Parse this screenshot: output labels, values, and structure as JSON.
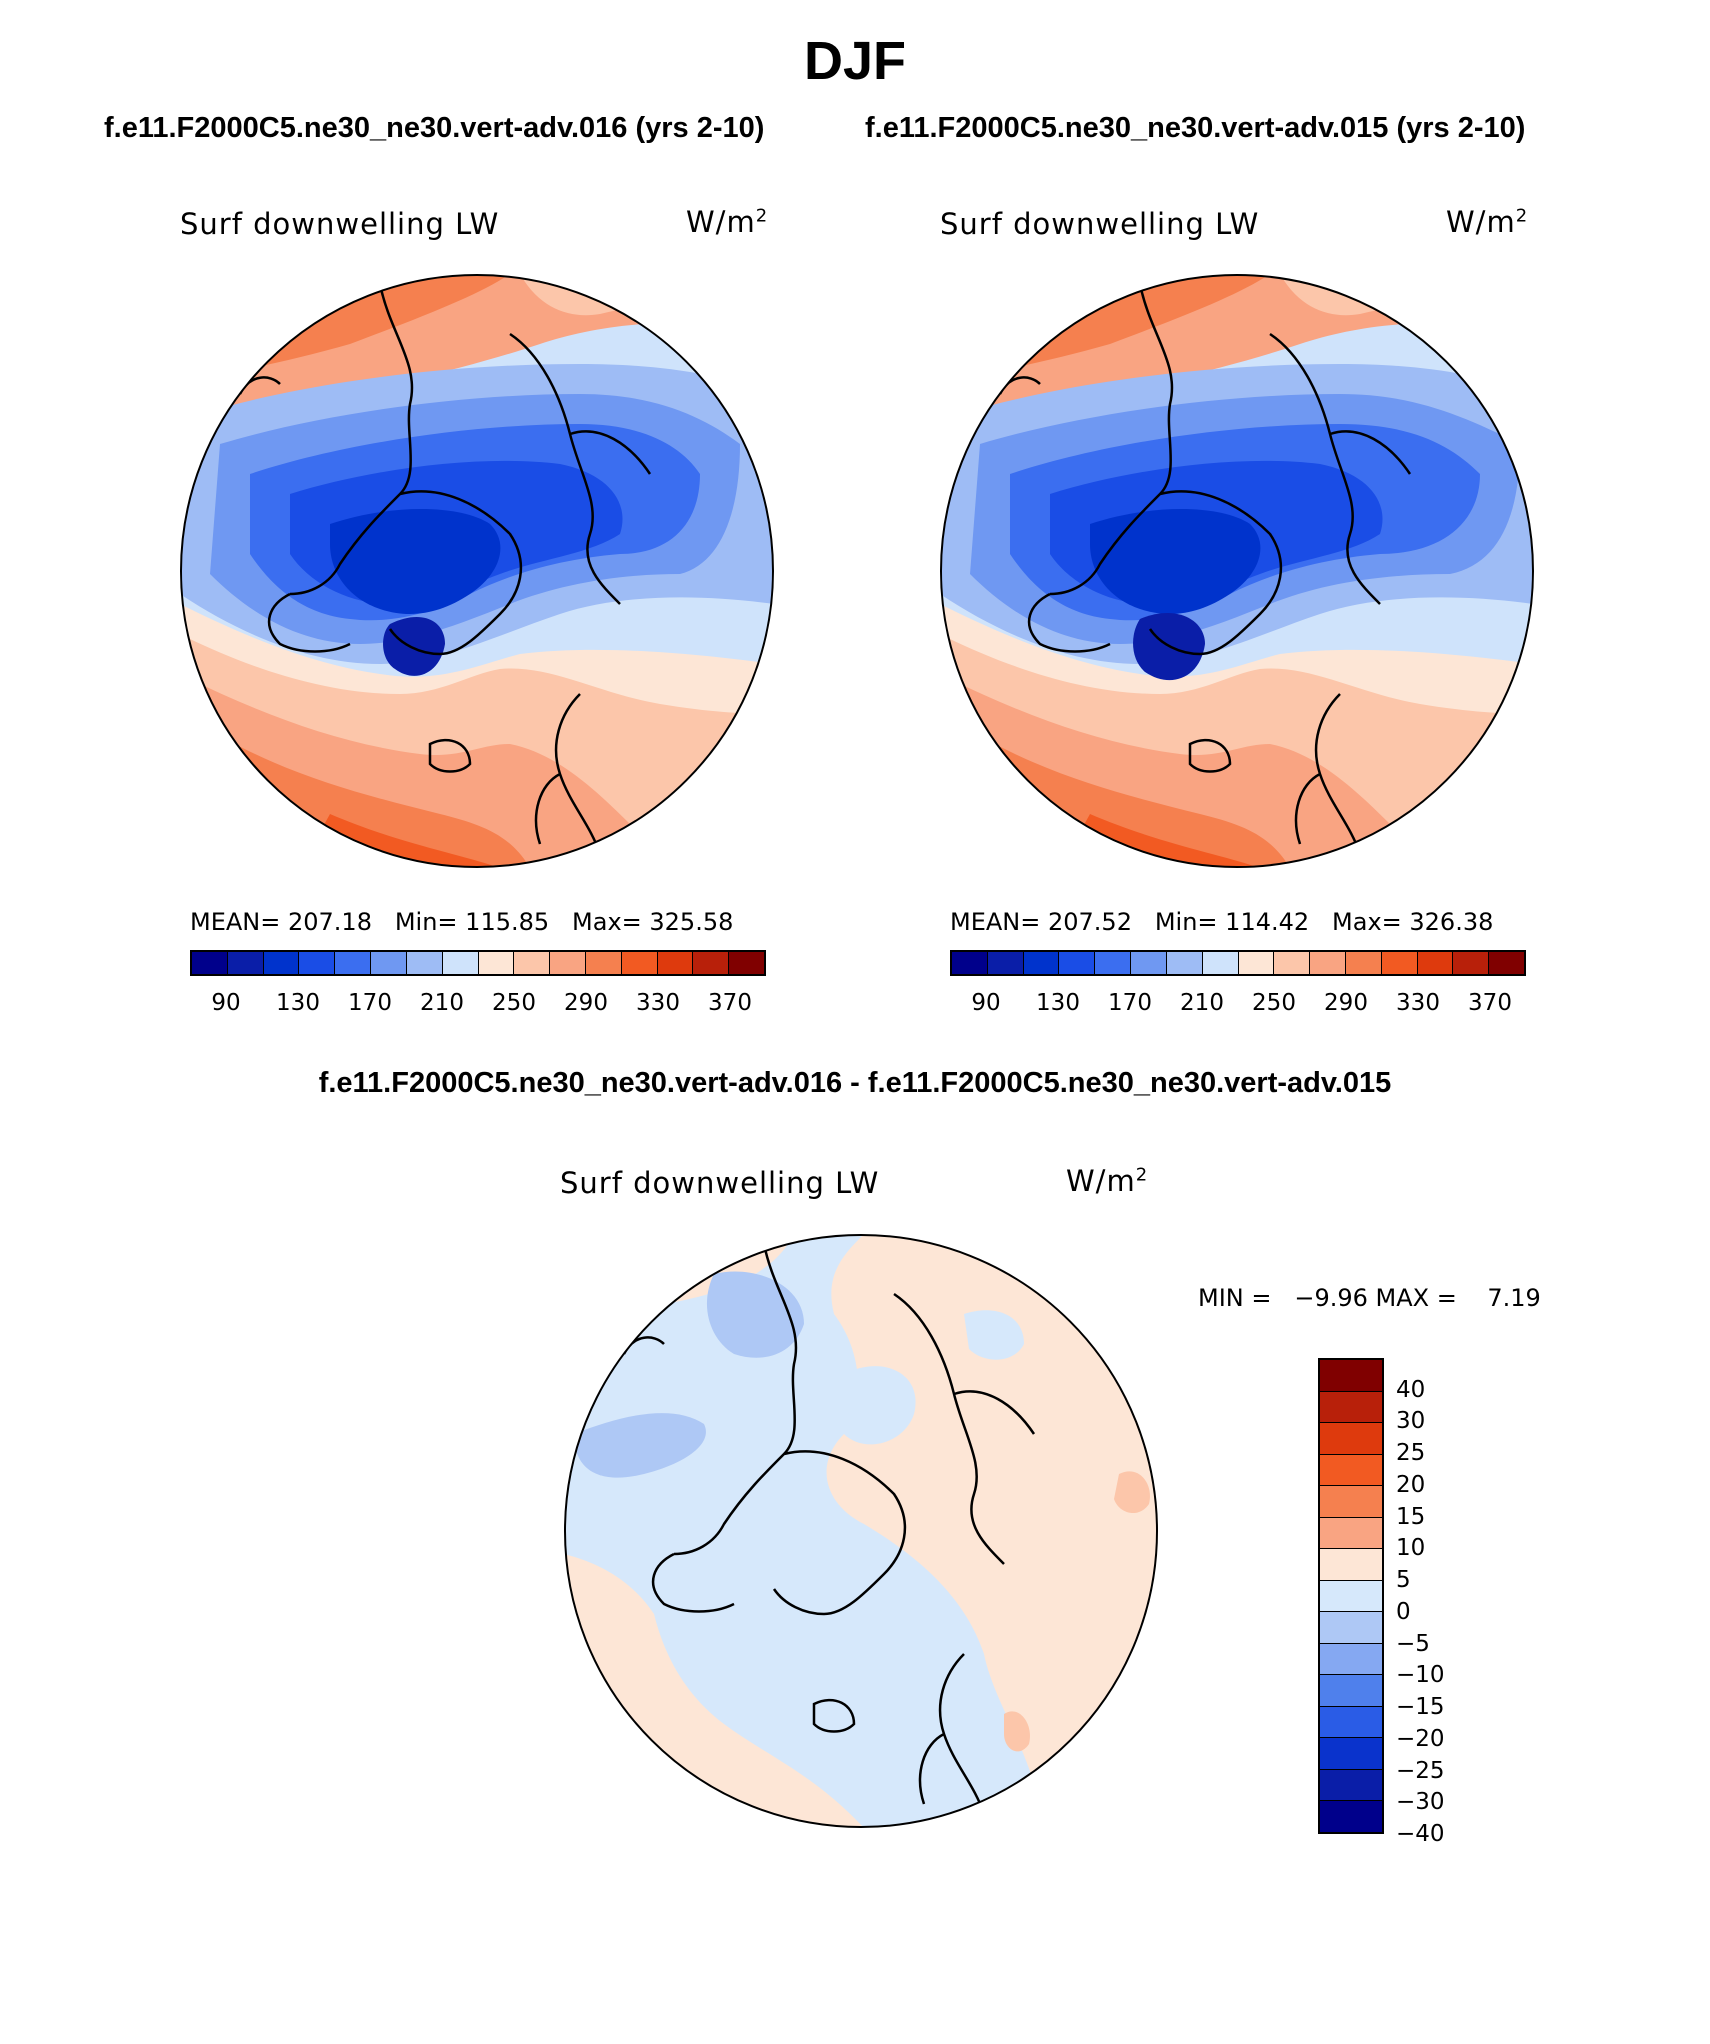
{
  "figure": {
    "title": "DJF",
    "left_case": "f.e11.F2000C5.ne30_ne30.vert-adv.016 (yrs 2-10)",
    "right_case": "f.e11.F2000C5.ne30_ne30.vert-adv.015 (yrs 2-10)",
    "diff_title": "f.e11.F2000C5.ne30_ne30.vert-adv.016 - f.e11.F2000C5.ne30_ne30.vert-adv.015"
  },
  "panels": [
    {
      "variable": "Surf downwelling LW",
      "units": "W/m",
      "units_sup": "2",
      "stats": "MEAN= 207.18   Min= 115.85   Max= 325.58"
    },
    {
      "variable": "Surf downwelling LW",
      "units": "W/m",
      "units_sup": "2",
      "stats": "MEAN= 207.52   Min= 114.42   Max= 326.38"
    },
    {
      "variable": "Surf downwelling LW",
      "units": "W/m",
      "units_sup": "2",
      "stats": "MIN =   −9.96 MAX =    7.19"
    }
  ],
  "colorbar_abs": {
    "colors": [
      "#00008b",
      "#0a1ea8",
      "#0033cc",
      "#1a4de6",
      "#3b6ef0",
      "#6f98f2",
      "#9ebcf5",
      "#cfe3fb",
      "#fde6d6",
      "#fcc6aa",
      "#f9a482",
      "#f5804f",
      "#f25a22",
      "#de3a0d",
      "#b8200a",
      "#800000"
    ],
    "ticks": [
      "90",
      "130",
      "170",
      "210",
      "250",
      "290",
      "330",
      "370"
    ]
  },
  "colorbar_diff": {
    "colors": [
      "#800000",
      "#b8200a",
      "#de3a0d",
      "#f25a22",
      "#f5804f",
      "#f9a482",
      "#fde6d6",
      "#d6e8fb",
      "#aec8f5",
      "#85a8f2",
      "#4f80ec",
      "#2a5ce6",
      "#0a33cc",
      "#0a1ea8",
      "#00008b"
    ],
    "ticks": [
      "40",
      "30",
      "25",
      "20",
      "15",
      "10",
      "5",
      "0",
      "−5",
      "−10",
      "−15",
      "−20",
      "−25",
      "−30",
      "−40"
    ]
  }
}
